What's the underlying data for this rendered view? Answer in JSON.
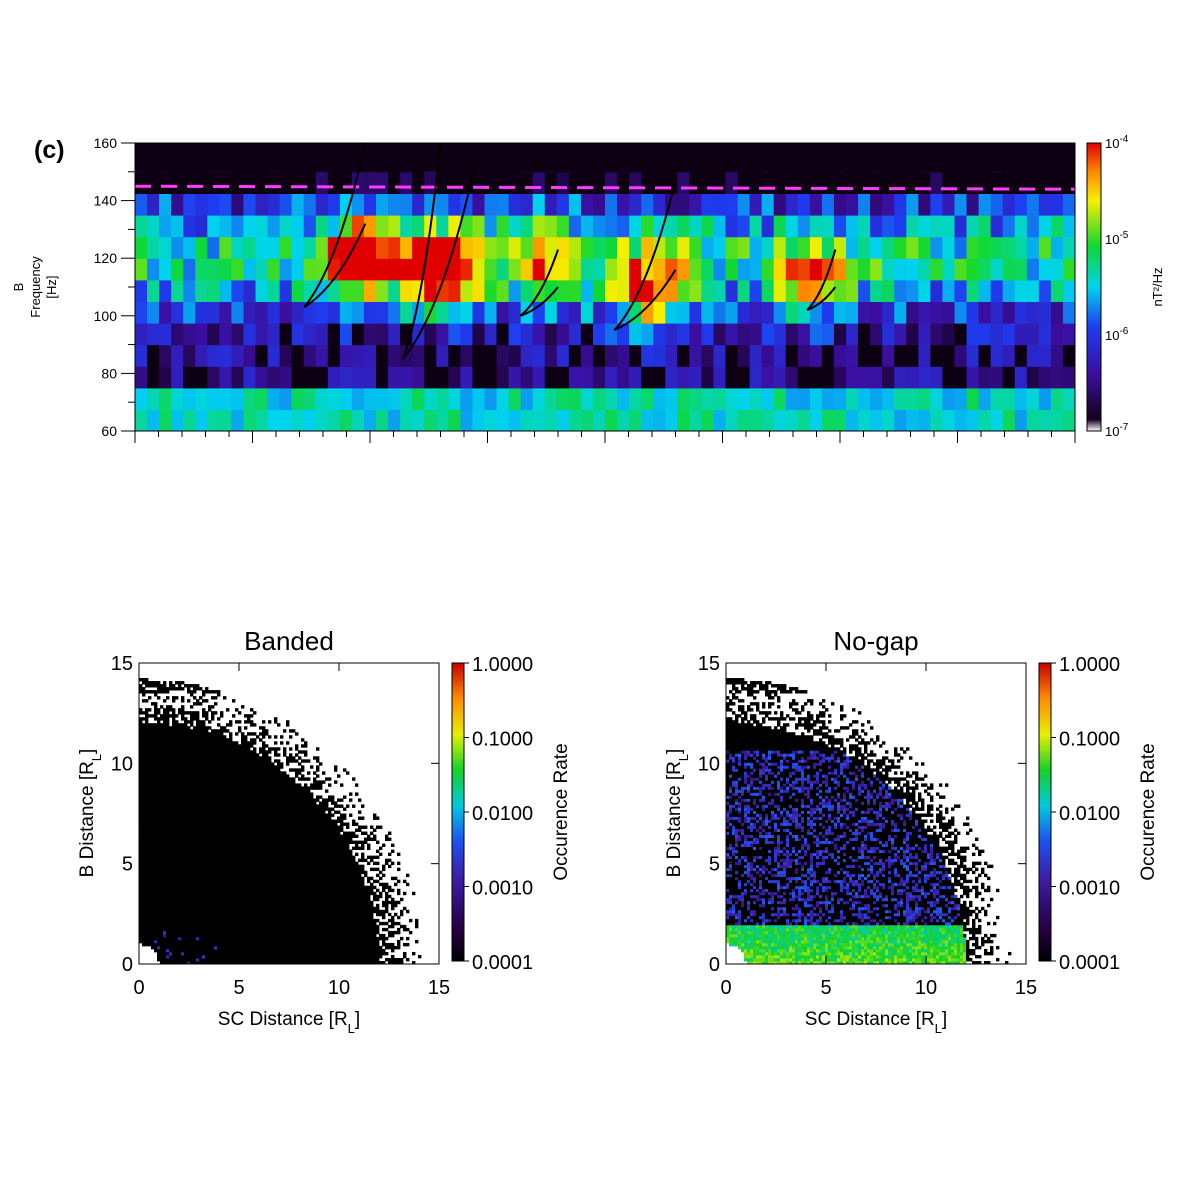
{
  "chart_data": [
    {
      "type": "heatmap",
      "panel_label": "(c)",
      "ylabel_lines": [
        "B",
        "Frequency",
        "[Hz]"
      ],
      "ylim": [
        60,
        160
      ],
      "yticks": [
        60,
        80,
        100,
        120,
        140,
        160
      ],
      "colorbar": {
        "label": "nT²/Hz",
        "scale": "log",
        "range": [
          1e-07,
          0.0001
        ],
        "ticks": [
          {
            "value": 0.0001,
            "base": "10",
            "exp": "-4"
          },
          {
            "value": 1e-05,
            "base": "10",
            "exp": "-5"
          },
          {
            "value": 1e-06,
            "base": "10",
            "exp": "-6"
          },
          {
            "value": 1e-07,
            "base": "10",
            "exp": "-7"
          }
        ]
      },
      "reference_line_hz": 145,
      "frequency_bins_hz": [
        60,
        67.5,
        75,
        82.5,
        90,
        97.5,
        105,
        112.5,
        120,
        127.5,
        135,
        142.5,
        150
      ],
      "time_bins": 78,
      "rising_tones": [
        {
          "start": [
            0.18,
            103
          ],
          "end": [
            0.245,
            160
          ]
        },
        {
          "start": [
            0.18,
            103
          ],
          "end": [
            0.245,
            132
          ]
        },
        {
          "start": [
            0.285,
            85
          ],
          "end": [
            0.325,
            160
          ]
        },
        {
          "start": [
            0.285,
            85
          ],
          "end": [
            0.36,
            150
          ]
        },
        {
          "start": [
            0.41,
            100
          ],
          "end": [
            0.45,
            123
          ]
        },
        {
          "start": [
            0.41,
            100
          ],
          "end": [
            0.45,
            110
          ]
        },
        {
          "start": [
            0.51,
            95
          ],
          "end": [
            0.575,
            147
          ]
        },
        {
          "start": [
            0.51,
            95
          ],
          "end": [
            0.575,
            116
          ]
        },
        {
          "start": [
            0.715,
            102
          ],
          "end": [
            0.745,
            123
          ]
        },
        {
          "start": [
            0.715,
            102
          ],
          "end": [
            0.745,
            110
          ]
        }
      ],
      "note_hot_spots": [
        {
          "x": 0.245,
          "f": 121,
          "amp": 2.6
        },
        {
          "x": 0.33,
          "f": 117,
          "amp": 3.0
        },
        {
          "x": 0.545,
          "f": 108,
          "amp": 2.4
        },
        {
          "x": 0.44,
          "f": 118,
          "amp": 1.6
        },
        {
          "x": 0.72,
          "f": 112,
          "amp": 1.8
        }
      ]
    },
    {
      "type": "heatmap",
      "title": "Banded",
      "xlabel": "SC Distance [R",
      "xlabel_sub": "L",
      "ylabel": "B Distance [R",
      "ylabel_sub": "L",
      "xlim": [
        0,
        15
      ],
      "ylim": [
        0,
        15
      ],
      "xticks": [
        0,
        5,
        10,
        15
      ],
      "yticks": [
        0,
        5,
        10,
        15
      ],
      "coverage_radius_RL": 12,
      "colorbar": {
        "label": "Occurence Rate",
        "scale": "log",
        "range": [
          0.0001,
          1.0
        ],
        "ticks": [
          "1.0000",
          "0.1000",
          "0.0100",
          "0.0010",
          "0.0001"
        ]
      },
      "occurrence": "near-zero everywhere except a few scattered purple cells near the origin"
    },
    {
      "type": "heatmap",
      "title": "No-gap",
      "xlabel": "SC Distance [R",
      "xlabel_sub": "L",
      "ylabel": "B Distance [R",
      "ylabel_sub": "L",
      "xlim": [
        0,
        15
      ],
      "ylim": [
        0,
        15
      ],
      "xticks": [
        0,
        5,
        10,
        15
      ],
      "yticks": [
        0,
        5,
        10,
        15
      ],
      "coverage_radius_RL": 12,
      "colorbar": {
        "label": "Occurence Rate",
        "scale": "log",
        "range": [
          0.0001,
          1.0
        ],
        "ticks": [
          "1.0000",
          "0.1000",
          "0.0100",
          "0.0010",
          "0.0001"
        ]
      },
      "occurrence": "high (~0.01-0.1) in a band below B distance ~2 R_L; ~0.001 speckle up to ~10.5 R_L"
    }
  ]
}
